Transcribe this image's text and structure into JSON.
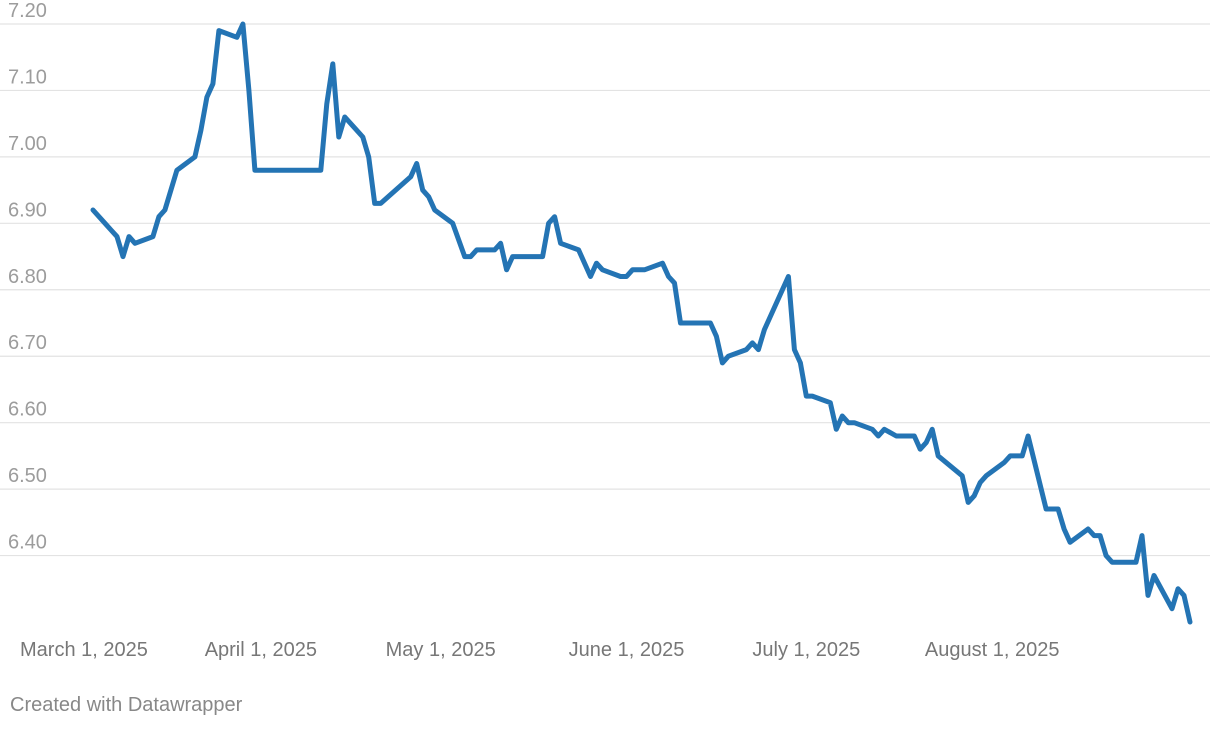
{
  "chart_data": {
    "type": "line",
    "title": "",
    "xlabel": "",
    "ylabel": "",
    "ylim": [
      6.3,
      7.2
    ],
    "y_ticks": [
      "6.40",
      "6.50",
      "6.60",
      "6.70",
      "6.80",
      "6.90",
      "7.00",
      "7.10",
      "7.20"
    ],
    "x_ticks": [
      {
        "date": "2025-03-01",
        "label": "March 1, 2025"
      },
      {
        "date": "2025-04-01",
        "label": "April 1, 2025"
      },
      {
        "date": "2025-05-01",
        "label": "May 1, 2025"
      },
      {
        "date": "2025-06-01",
        "label": "June 1, 2025"
      },
      {
        "date": "2025-07-01",
        "label": "July 1, 2025"
      },
      {
        "date": "2025-08-01",
        "label": "August 1, 2025"
      }
    ],
    "grid": true,
    "series": [
      {
        "color": "#2474b4",
        "points": [
          [
            "2025-03-04",
            6.92
          ],
          [
            "2025-03-06",
            6.9
          ],
          [
            "2025-03-07",
            6.89
          ],
          [
            "2025-03-08",
            6.88
          ],
          [
            "2025-03-09",
            6.85
          ],
          [
            "2025-03-10",
            6.88
          ],
          [
            "2025-03-11",
            6.87
          ],
          [
            "2025-03-14",
            6.88
          ],
          [
            "2025-03-15",
            6.91
          ],
          [
            "2025-03-16",
            6.92
          ],
          [
            "2025-03-17",
            6.95
          ],
          [
            "2025-03-18",
            6.98
          ],
          [
            "2025-03-21",
            7.0
          ],
          [
            "2025-03-22",
            7.04
          ],
          [
            "2025-03-23",
            7.09
          ],
          [
            "2025-03-24",
            7.11
          ],
          [
            "2025-03-25",
            7.19
          ],
          [
            "2025-03-28",
            7.18
          ],
          [
            "2025-03-29",
            7.2
          ],
          [
            "2025-03-30",
            7.1
          ],
          [
            "2025-03-31",
            6.98
          ],
          [
            "2025-04-11",
            6.98
          ],
          [
            "2025-04-12",
            7.08
          ],
          [
            "2025-04-13",
            7.14
          ],
          [
            "2025-04-14",
            7.03
          ],
          [
            "2025-04-15",
            7.06
          ],
          [
            "2025-04-18",
            7.03
          ],
          [
            "2025-04-19",
            7.0
          ],
          [
            "2025-04-20",
            6.93
          ],
          [
            "2025-04-21",
            6.93
          ],
          [
            "2025-04-26",
            6.97
          ],
          [
            "2025-04-27",
            6.99
          ],
          [
            "2025-04-28",
            6.95
          ],
          [
            "2025-04-29",
            6.94
          ],
          [
            "2025-04-30",
            6.92
          ],
          [
            "2025-05-03",
            6.9
          ],
          [
            "2025-05-05",
            6.85
          ],
          [
            "2025-05-06",
            6.85
          ],
          [
            "2025-05-07",
            6.86
          ],
          [
            "2025-05-10",
            6.86
          ],
          [
            "2025-05-11",
            6.87
          ],
          [
            "2025-05-12",
            6.83
          ],
          [
            "2025-05-13",
            6.85
          ],
          [
            "2025-05-18",
            6.85
          ],
          [
            "2025-05-19",
            6.9
          ],
          [
            "2025-05-20",
            6.91
          ],
          [
            "2025-05-21",
            6.87
          ],
          [
            "2025-05-24",
            6.86
          ],
          [
            "2025-05-26",
            6.82
          ],
          [
            "2025-05-27",
            6.84
          ],
          [
            "2025-05-28",
            6.83
          ],
          [
            "2025-05-31",
            6.82
          ],
          [
            "2025-06-01",
            6.82
          ],
          [
            "2025-06-02",
            6.83
          ],
          [
            "2025-06-04",
            6.83
          ],
          [
            "2025-06-07",
            6.84
          ],
          [
            "2025-06-08",
            6.82
          ],
          [
            "2025-06-09",
            6.81
          ],
          [
            "2025-06-10",
            6.75
          ],
          [
            "2025-06-15",
            6.75
          ],
          [
            "2025-06-16",
            6.73
          ],
          [
            "2025-06-17",
            6.69
          ],
          [
            "2025-06-18",
            6.7
          ],
          [
            "2025-06-21",
            6.71
          ],
          [
            "2025-06-22",
            6.72
          ],
          [
            "2025-06-23",
            6.71
          ],
          [
            "2025-06-24",
            6.74
          ],
          [
            "2025-06-28",
            6.82
          ],
          [
            "2025-06-29",
            6.71
          ],
          [
            "2025-06-30",
            6.69
          ],
          [
            "2025-07-01",
            6.64
          ],
          [
            "2025-07-02",
            6.64
          ],
          [
            "2025-07-05",
            6.63
          ],
          [
            "2025-07-06",
            6.59
          ],
          [
            "2025-07-07",
            6.61
          ],
          [
            "2025-07-08",
            6.6
          ],
          [
            "2025-07-09",
            6.6
          ],
          [
            "2025-07-12",
            6.59
          ],
          [
            "2025-07-13",
            6.58
          ],
          [
            "2025-07-14",
            6.59
          ],
          [
            "2025-07-16",
            6.58
          ],
          [
            "2025-07-19",
            6.58
          ],
          [
            "2025-07-20",
            6.56
          ],
          [
            "2025-07-21",
            6.57
          ],
          [
            "2025-07-22",
            6.59
          ],
          [
            "2025-07-23",
            6.55
          ],
          [
            "2025-07-27",
            6.52
          ],
          [
            "2025-07-28",
            6.48
          ],
          [
            "2025-07-29",
            6.49
          ],
          [
            "2025-07-30",
            6.51
          ],
          [
            "2025-07-31",
            6.52
          ],
          [
            "2025-08-03",
            6.54
          ],
          [
            "2025-08-04",
            6.55
          ],
          [
            "2025-08-06",
            6.55
          ],
          [
            "2025-08-07",
            6.58
          ],
          [
            "2025-08-10",
            6.47
          ],
          [
            "2025-08-11",
            6.47
          ],
          [
            "2025-08-12",
            6.47
          ],
          [
            "2025-08-13",
            6.44
          ],
          [
            "2025-08-14",
            6.42
          ],
          [
            "2025-08-17",
            6.44
          ],
          [
            "2025-08-18",
            6.43
          ],
          [
            "2025-08-19",
            6.43
          ],
          [
            "2025-08-20",
            6.4
          ],
          [
            "2025-08-21",
            6.39
          ],
          [
            "2025-08-24",
            6.39
          ],
          [
            "2025-08-25",
            6.39
          ],
          [
            "2025-08-26",
            6.43
          ],
          [
            "2025-08-27",
            6.34
          ],
          [
            "2025-08-28",
            6.37
          ],
          [
            "2025-08-31",
            6.32
          ],
          [
            "2025-09-01",
            6.35
          ],
          [
            "2025-09-02",
            6.34
          ],
          [
            "2025-09-03",
            6.3
          ]
        ]
      }
    ]
  },
  "footer": {
    "credit": "Created with Datawrapper"
  }
}
